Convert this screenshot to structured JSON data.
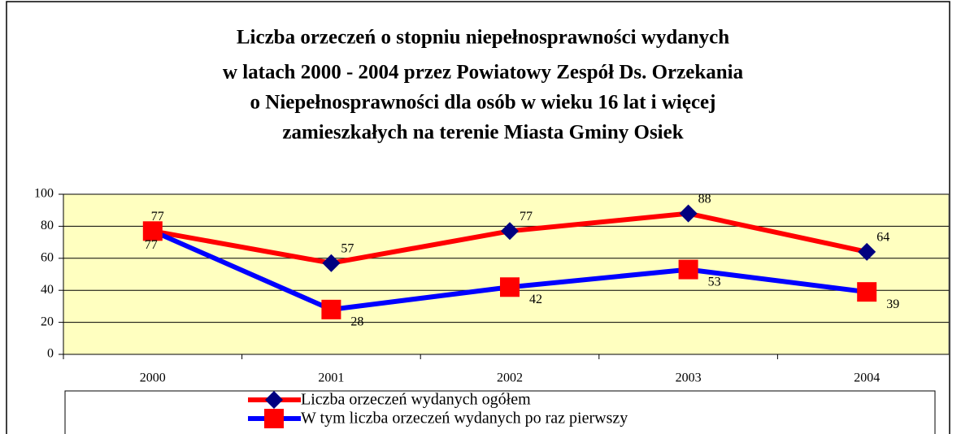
{
  "chart_data": {
    "type": "line",
    "title": [
      "Liczba orzeczeń o stopniu niepełnosprawności wydanych",
      "w latach 2000 - 2004 przez Powiatowy Zespół Ds. Orzekania",
      "o Niepełnosprawności dla osób w wieku 16 lat i więcej",
      "zamieszkałych na terenie Miasta Gminy Osiek"
    ],
    "categories": [
      "2000",
      "2001",
      "2002",
      "2003",
      "2004"
    ],
    "series": [
      {
        "name": "Liczba orzeczeń wydanych ogółem",
        "color": "#ff0000",
        "marker_color": "#000080",
        "marker": "diamond",
        "values": [
          77,
          57,
          77,
          88,
          64
        ]
      },
      {
        "name": "W tym liczba orzeczeń  wydanych po raz pierwszy",
        "color": "#0000ff",
        "marker_color": "#ff0000",
        "marker": "square",
        "values": [
          77,
          28,
          42,
          53,
          39
        ]
      }
    ],
    "ylim": [
      0,
      100
    ],
    "yticks": [
      0,
      20,
      40,
      60,
      80,
      100
    ],
    "grid": true,
    "plot_background": "#ffffc0"
  }
}
